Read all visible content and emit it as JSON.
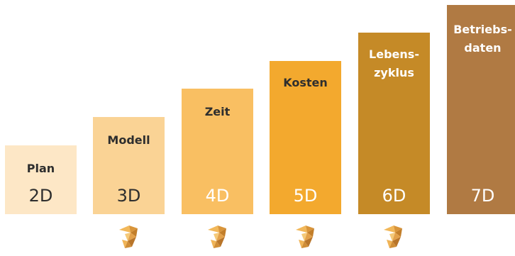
{
  "steps": [
    {
      "dimension": "2D",
      "label": "Plan",
      "color": "#fde7c6",
      "text_color": "#2e2e2e",
      "dim_color": "#2e2e2e"
    },
    {
      "dimension": "3D",
      "label": "Modell",
      "color": "#fad395",
      "text_color": "#2e2e2e",
      "dim_color": "#2e2e2e"
    },
    {
      "dimension": "4D",
      "label": "Zeit",
      "color": "#f9bf62",
      "text_color": "#2e2e2e",
      "dim_color": "#ffffff"
    },
    {
      "dimension": "5D",
      "label": "Kosten",
      "color": "#f3a92e",
      "text_color": "#2e2e2e",
      "dim_color": "#ffffff"
    },
    {
      "dimension": "6D",
      "label": "Lebens-\nzyklus",
      "color": "#c58a27",
      "text_color": "#ffffff",
      "dim_color": "#ffffff"
    },
    {
      "dimension": "7D",
      "label": "Betriebs-\ndaten",
      "color": "#b07a43",
      "text_color": "#ffffff",
      "dim_color": "#ffffff"
    }
  ],
  "logo": {
    "icon": "faceted-origami-logo-icon",
    "color": "#e0a24a"
  }
}
